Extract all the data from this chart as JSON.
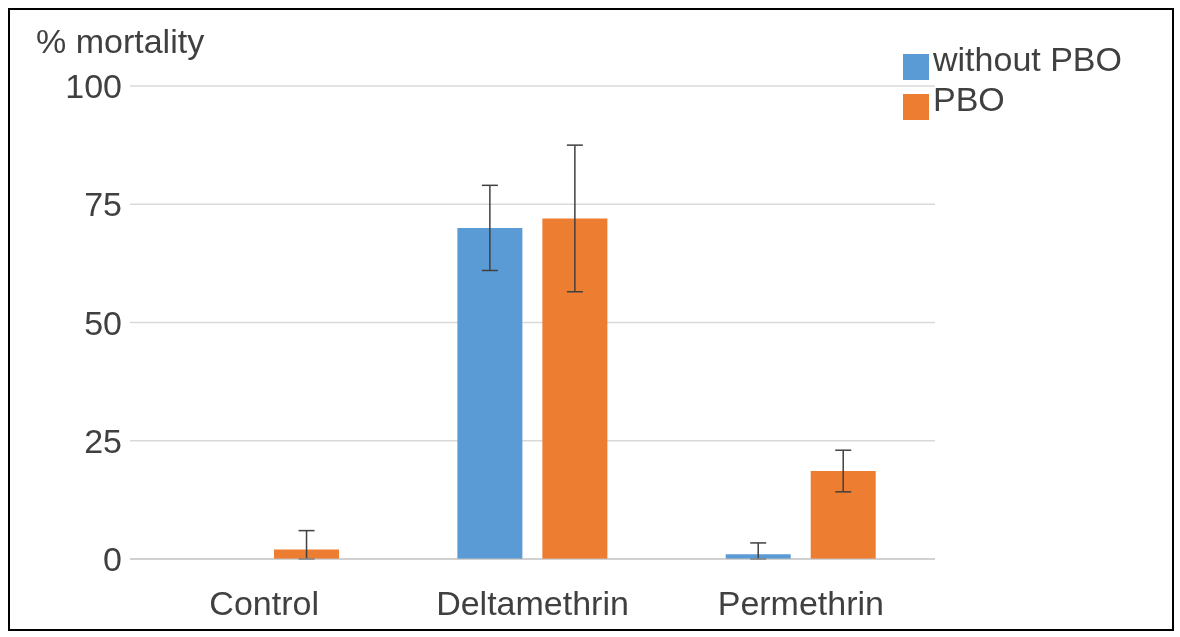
{
  "chart_data": {
    "type": "bar",
    "ylabel": "% mortality",
    "categories": [
      "Control",
      "Deltamethrin",
      "Permethrin"
    ],
    "series": [
      {
        "name": "without PBO",
        "color": "#5b9bd5",
        "values": [
          0,
          70,
          1
        ],
        "errors": [
          null,
          9,
          [
            0,
            3.4
          ]
        ]
      },
      {
        "name": "PBO",
        "color": "#ed7d31",
        "values": [
          2,
          72,
          18.6
        ],
        "errors": [
          [
            0,
            6
          ],
          15.5,
          4.4
        ]
      }
    ],
    "ylim": [
      0,
      100
    ],
    "yticks": [
      0,
      25,
      50,
      75,
      100
    ],
    "grid": "y",
    "legend": "top right"
  }
}
